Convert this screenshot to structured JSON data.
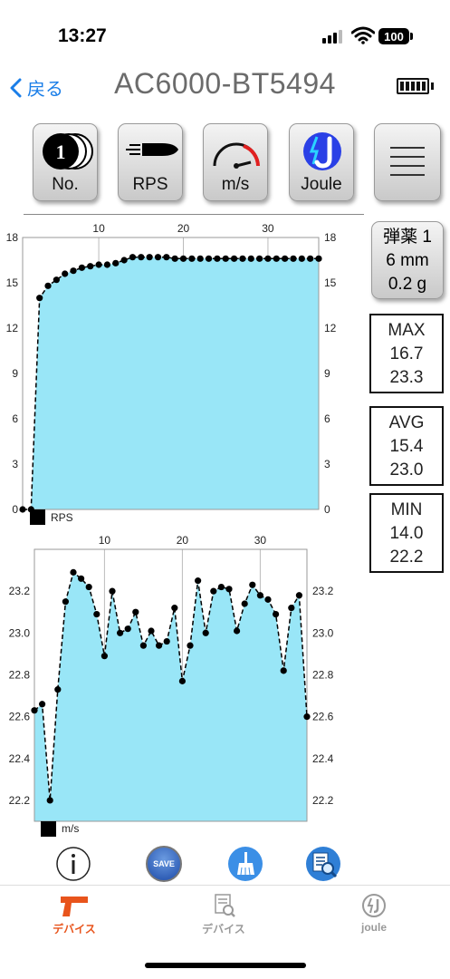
{
  "status_bar": {
    "time": "13:27",
    "battery": "100"
  },
  "nav": {
    "back_label": "戻る",
    "title": "AC6000-BT5494"
  },
  "toolbar": [
    {
      "name": "no-button",
      "label": "No.",
      "icon": "number-1-coins-icon"
    },
    {
      "name": "rps-button",
      "label": "RPS",
      "icon": "bullet-icon"
    },
    {
      "name": "ms-button",
      "label": "m/s",
      "icon": "speedometer-icon"
    },
    {
      "name": "joule-button",
      "label": "Joule",
      "icon": "joule-lightning-icon"
    },
    {
      "name": "menu-button",
      "label": "",
      "icon": "hamburger-menu-icon"
    }
  ],
  "ammo": {
    "line1": "弾薬 1",
    "line2": "6 mm",
    "line3": "0.2 g"
  },
  "stats": {
    "max": {
      "label": "MAX",
      "rps": "16.7",
      "ms": "23.3"
    },
    "avg": {
      "label": "AVG",
      "rps": "15.4",
      "ms": "23.0"
    },
    "min": {
      "label": "MIN",
      "rps": "14.0",
      "ms": "22.2"
    }
  },
  "chart_data": [
    {
      "type": "area",
      "legend": "RPS",
      "x": [
        1,
        2,
        3,
        4,
        5,
        6,
        7,
        8,
        9,
        10,
        11,
        12,
        13,
        14,
        15,
        16,
        17,
        18,
        19,
        20,
        21,
        22,
        23,
        24,
        25,
        26,
        27,
        28,
        29,
        30,
        31,
        32,
        33,
        34,
        35,
        36
      ],
      "values": [
        0,
        0,
        14.0,
        14.8,
        15.2,
        15.6,
        15.8,
        16.0,
        16.1,
        16.2,
        16.2,
        16.3,
        16.5,
        16.7,
        16.7,
        16.7,
        16.7,
        16.7,
        16.6,
        16.6,
        16.6,
        16.6,
        16.6,
        16.6,
        16.6,
        16.6,
        16.6,
        16.6,
        16.6,
        16.6,
        16.6,
        16.6,
        16.6,
        16.6,
        16.6,
        16.6
      ],
      "x_ticks": [
        10,
        20,
        30
      ],
      "y_ticks": [
        0,
        3,
        6,
        9,
        12,
        15,
        18
      ],
      "ylim": [
        0,
        18
      ],
      "fill_color": "#99e6f7",
      "line_style": "dashed"
    },
    {
      "type": "area",
      "legend": "m/s",
      "x": [
        1,
        2,
        3,
        4,
        5,
        6,
        7,
        8,
        9,
        10,
        11,
        12,
        13,
        14,
        15,
        16,
        17,
        18,
        19,
        20,
        21,
        22,
        23,
        24,
        25,
        26,
        27,
        28,
        29,
        30,
        31,
        32,
        33,
        34,
        35,
        36
      ],
      "values": [
        22.63,
        22.66,
        22.2,
        22.73,
        23.15,
        23.29,
        23.26,
        23.22,
        23.09,
        22.89,
        23.2,
        23.0,
        23.02,
        23.1,
        22.94,
        23.01,
        22.94,
        22.96,
        23.12,
        22.77,
        22.94,
        23.25,
        23.0,
        23.2,
        23.22,
        23.21,
        23.01,
        23.14,
        23.23,
        23.18,
        23.16,
        23.09,
        22.82,
        23.12,
        23.18,
        22.6
      ],
      "x_ticks": [
        10,
        20,
        30
      ],
      "y_ticks": [
        22.2,
        22.4,
        22.6,
        22.8,
        23.0,
        23.2
      ],
      "ylim": [
        22.1,
        23.4
      ],
      "fill_color": "#99e6f7",
      "line_style": "dashed"
    }
  ],
  "bottom_actions": [
    {
      "name": "info-button",
      "icon": "info-icon",
      "label": ""
    },
    {
      "name": "save-button",
      "icon": "save-icon",
      "label": "SAVE"
    },
    {
      "name": "clear-button",
      "icon": "broom-icon",
      "label": ""
    },
    {
      "name": "report-button",
      "icon": "report-search-icon",
      "label": ""
    }
  ],
  "tabs": [
    {
      "name": "tab-device",
      "label": "デバイス",
      "icon": "pistol-icon",
      "active": true,
      "color": "#e8541c"
    },
    {
      "name": "tab-device-log",
      "label": "デバイス",
      "icon": "document-search-icon",
      "active": false,
      "color": "#999999"
    },
    {
      "name": "tab-joule",
      "label": "joule",
      "icon": "joule-circle-icon",
      "active": false,
      "color": "#999999"
    }
  ]
}
